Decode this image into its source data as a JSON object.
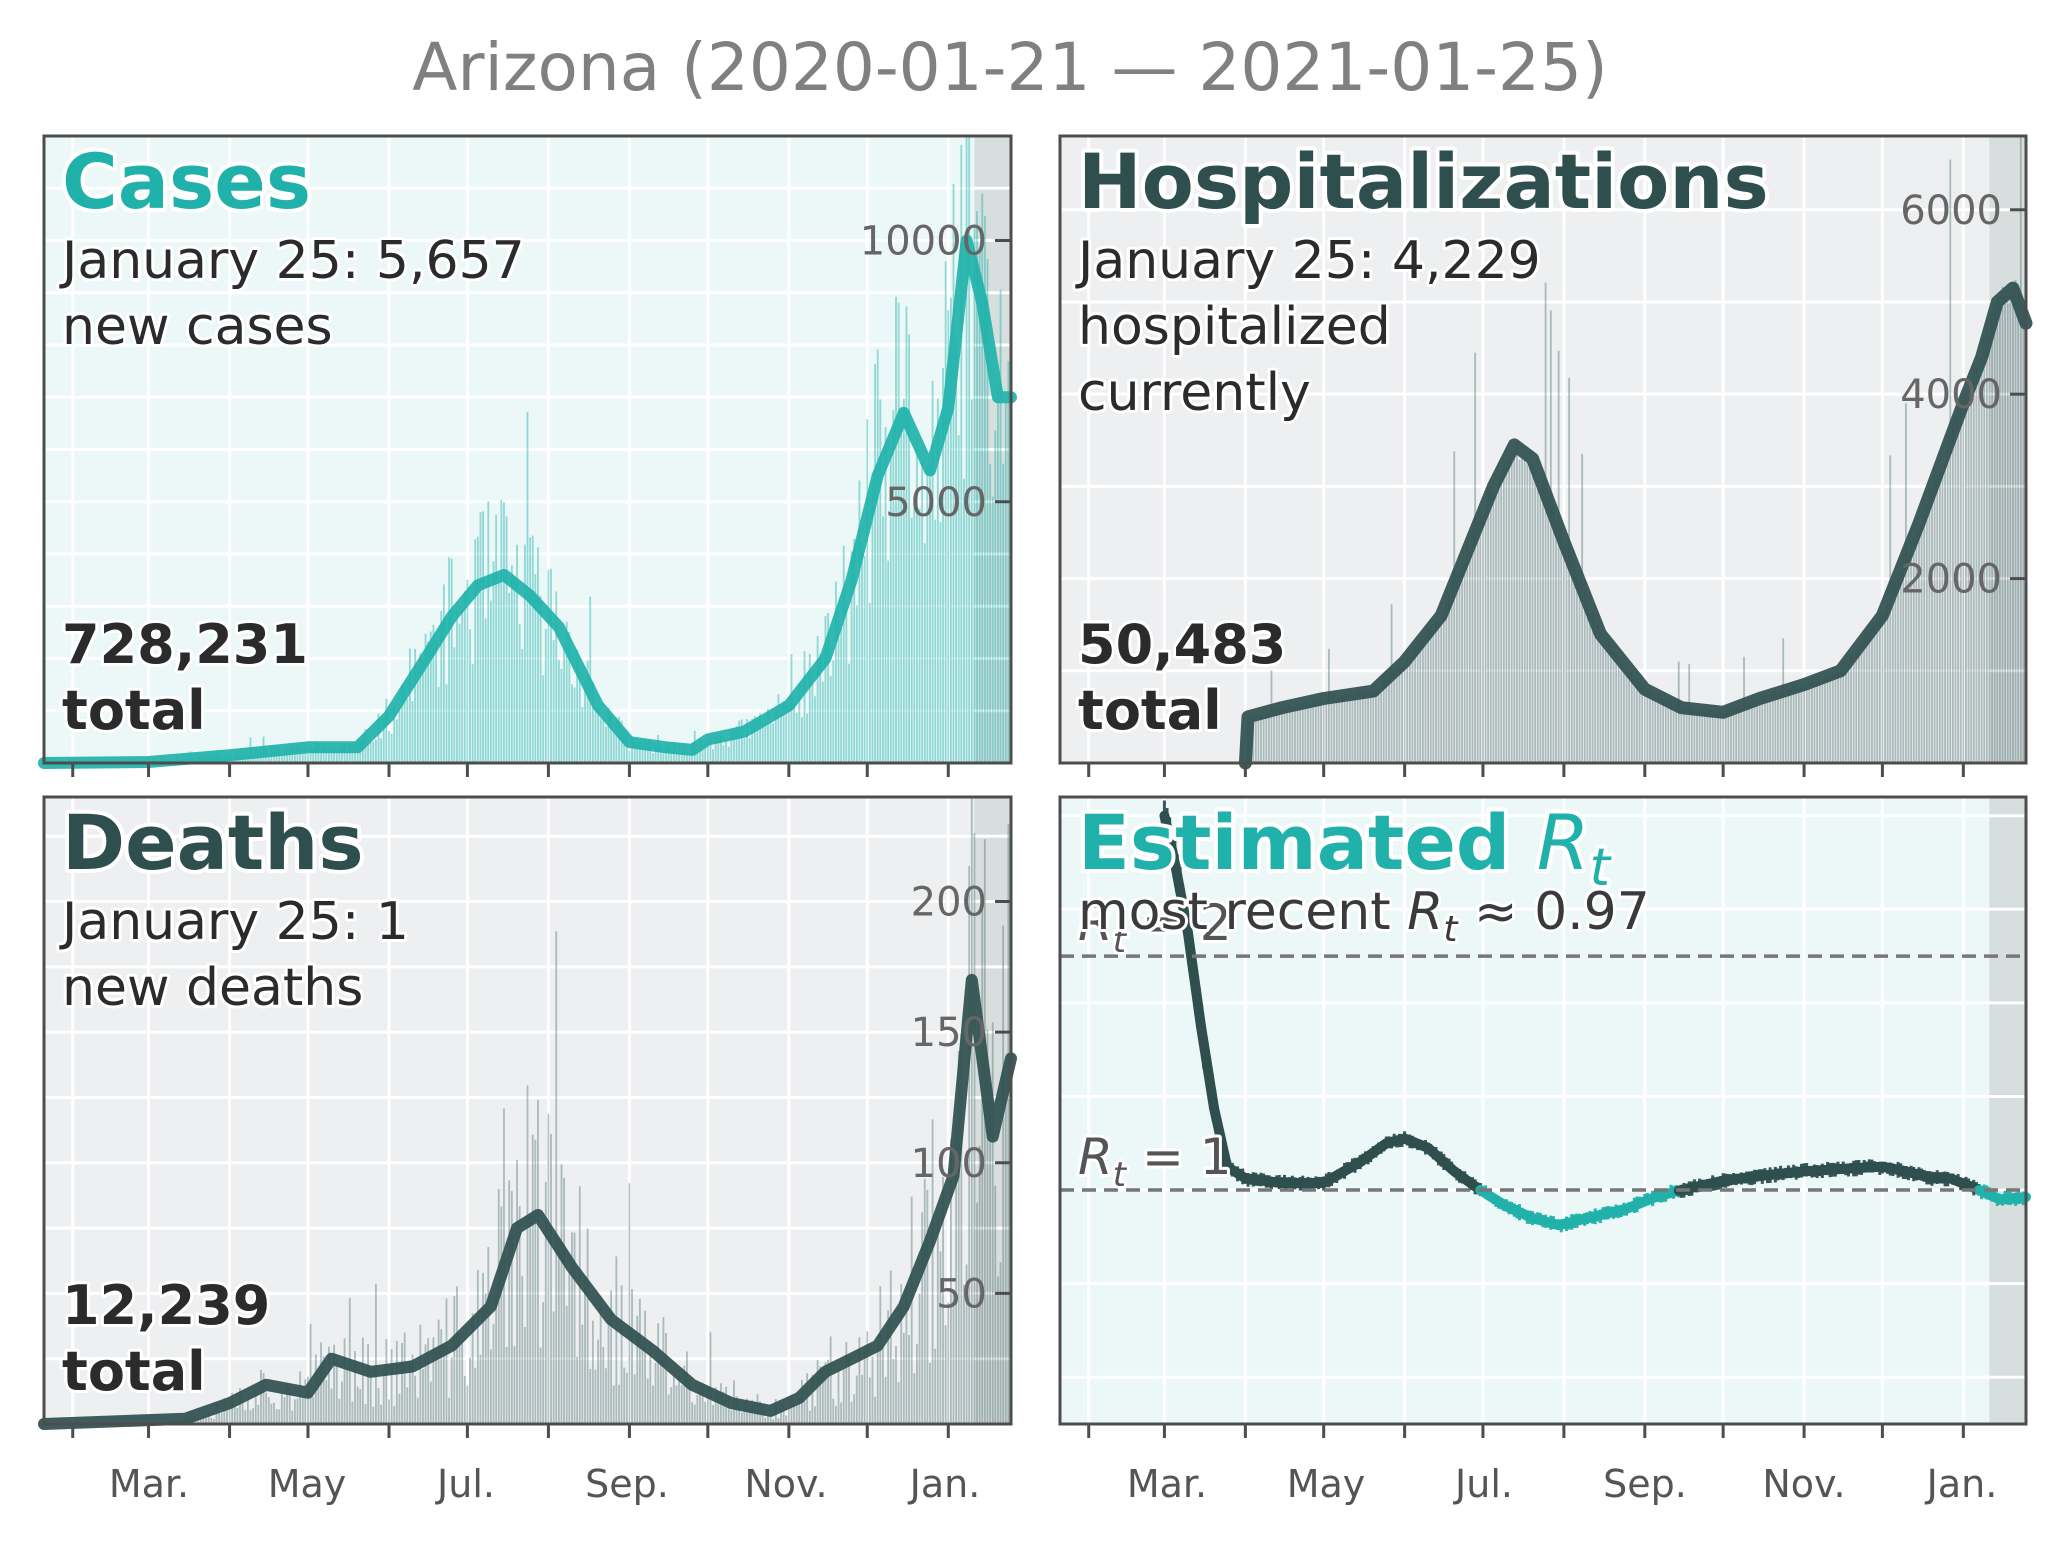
{
  "figure": {
    "title": "Arizona (2020-01-21 — 2021-01-25)",
    "month_labels": [
      "Mar.",
      "May",
      "Jul.",
      "Sep.",
      "Nov.",
      "Jan."
    ]
  },
  "colors": {
    "teal": "#20b2aa",
    "dark": "#2f4f4f",
    "panel_bg_light": "#ecf7f7",
    "panel_bg_gray": "#edeff0",
    "shade": "#d3d9d9",
    "spine": "#4d4d4d",
    "tick_text": "#666666"
  },
  "chart_data": [
    {
      "type": "bar",
      "panel": "cases",
      "title": "Cases",
      "subtitle_line1": "January 25: 5,657",
      "subtitle_line2": "new cases",
      "total_line1": "728,231",
      "total_line2": "total",
      "x_range": [
        "2020-01-21",
        "2021-01-25"
      ],
      "ylim": [
        0,
        12000
      ],
      "yticks": [
        5000,
        10000
      ],
      "ytick_labels": [
        "5000",
        "10000"
      ],
      "series": [
        {
          "kind": "smoothed",
          "x": [
            "2020-01-21",
            "2020-03-01",
            "2020-04-01",
            "2020-05-01",
            "2020-05-20",
            "2020-06-01",
            "2020-06-15",
            "2020-06-25",
            "2020-07-05",
            "2020-07-15",
            "2020-07-25",
            "2020-08-05",
            "2020-08-20",
            "2020-09-01",
            "2020-09-15",
            "2020-09-25",
            "2020-10-01",
            "2020-10-15",
            "2020-11-01",
            "2020-11-15",
            "2020-11-25",
            "2020-12-05",
            "2020-12-15",
            "2020-12-25",
            "2021-01-01",
            "2021-01-08",
            "2021-01-14",
            "2021-01-20",
            "2021-01-25"
          ],
          "y": [
            0,
            20,
            150,
            300,
            300,
            900,
            2000,
            2800,
            3400,
            3600,
            3200,
            2600,
            1100,
            400,
            300,
            250,
            450,
            600,
            1100,
            2000,
            3500,
            5500,
            6700,
            5600,
            6800,
            10000,
            8800,
            7000,
            7000
          ]
        }
      ]
    },
    {
      "type": "area",
      "panel": "hospitalizations",
      "title": "Hospitalizations",
      "subtitle_line1": "January 25: 4,229",
      "subtitle_line2": "hospitalized",
      "subtitle_line3": "currently",
      "total_line1": "50,483",
      "total_line2": "total",
      "x_range": [
        "2020-01-21",
        "2021-01-25"
      ],
      "ylim": [
        0,
        6800
      ],
      "yticks": [
        2000,
        4000,
        6000
      ],
      "ytick_labels": [
        "2000",
        "4000",
        "6000"
      ],
      "series": [
        {
          "kind": "smoothed",
          "x": [
            "2020-04-01",
            "2020-04-02",
            "2020-04-15",
            "2020-05-01",
            "2020-05-20",
            "2020-06-01",
            "2020-06-15",
            "2020-06-25",
            "2020-07-05",
            "2020-07-13",
            "2020-07-20",
            "2020-08-01",
            "2020-08-15",
            "2020-09-01",
            "2020-09-15",
            "2020-10-01",
            "2020-10-15",
            "2020-11-01",
            "2020-11-15",
            "2020-12-01",
            "2020-12-15",
            "2021-01-01",
            "2021-01-08",
            "2021-01-14",
            "2021-01-20",
            "2021-01-25"
          ],
          "y": [
            0,
            500,
            600,
            700,
            780,
            1100,
            1600,
            2300,
            3000,
            3450,
            3300,
            2400,
            1400,
            800,
            600,
            550,
            700,
            850,
            1000,
            1600,
            2600,
            3900,
            4400,
            5000,
            5150,
            4770
          ]
        }
      ]
    },
    {
      "type": "bar",
      "panel": "deaths",
      "title": "Deaths",
      "subtitle_line1": "January 25: 1",
      "subtitle_line2": "new deaths",
      "total_line1": "12,239",
      "total_line2": "total",
      "x_range": [
        "2020-01-21",
        "2021-01-25"
      ],
      "ylim": [
        0,
        240
      ],
      "yticks": [
        50,
        100,
        150,
        200
      ],
      "ytick_labels": [
        "50",
        "100",
        "150",
        "200"
      ],
      "series": [
        {
          "kind": "smoothed",
          "x": [
            "2020-01-21",
            "2020-03-15",
            "2020-04-01",
            "2020-04-15",
            "2020-05-01",
            "2020-05-10",
            "2020-05-25",
            "2020-06-10",
            "2020-06-25",
            "2020-07-10",
            "2020-07-20",
            "2020-07-28",
            "2020-08-10",
            "2020-08-25",
            "2020-09-10",
            "2020-09-25",
            "2020-10-10",
            "2020-10-25",
            "2020-11-05",
            "2020-11-15",
            "2020-11-25",
            "2020-12-05",
            "2020-12-15",
            "2020-12-25",
            "2021-01-03",
            "2021-01-10",
            "2021-01-14",
            "2021-01-18",
            "2021-01-25"
          ],
          "y": [
            0,
            2,
            8,
            15,
            12,
            25,
            20,
            22,
            30,
            45,
            75,
            80,
            60,
            40,
            28,
            15,
            8,
            5,
            10,
            20,
            25,
            30,
            45,
            70,
            95,
            170,
            140,
            110,
            140
          ]
        }
      ]
    },
    {
      "type": "line",
      "panel": "rt",
      "title_main": "Estimated ",
      "title_symbol": "R",
      "title_sub": "t",
      "subtitle_prefix": "most recent ",
      "subtitle_symbol": "R",
      "subtitle_sub": "t",
      "subtitle_suffix": " ≈ 0.97",
      "ref_line_2_symbol": "R",
      "ref_line_2_sub": "t",
      "ref_line_2_text": " = 2",
      "ref_line_1_symbol": "R",
      "ref_line_1_sub": "t",
      "ref_line_1_text": " = 1",
      "x_range": [
        "2020-01-21",
        "2021-01-25"
      ],
      "ylim": [
        0.0,
        2.68
      ],
      "reference_lines": [
        1,
        2
      ],
      "series": [
        {
          "kind": "estimate",
          "x": [
            "2020-03-01",
            "2020-03-05",
            "2020-03-10",
            "2020-03-15",
            "2020-03-20",
            "2020-03-25",
            "2020-04-01",
            "2020-04-15",
            "2020-05-01",
            "2020-05-15",
            "2020-05-25",
            "2020-06-01",
            "2020-06-10",
            "2020-06-20",
            "2020-06-30",
            "2020-07-10",
            "2020-07-20",
            "2020-07-30",
            "2020-08-10",
            "2020-08-25",
            "2020-09-05",
            "2020-09-15",
            "2020-10-01",
            "2020-10-15",
            "2020-11-01",
            "2020-11-15",
            "2020-12-01",
            "2020-12-10",
            "2020-12-20",
            "2020-12-27",
            "2021-01-05",
            "2021-01-15",
            "2021-01-25"
          ],
          "y": [
            2.6,
            2.4,
            2.1,
            1.7,
            1.35,
            1.1,
            1.05,
            1.03,
            1.03,
            1.12,
            1.2,
            1.22,
            1.18,
            1.08,
            1.0,
            0.93,
            0.88,
            0.85,
            0.88,
            0.92,
            0.97,
            1.0,
            1.04,
            1.06,
            1.08,
            1.09,
            1.1,
            1.08,
            1.05,
            1.05,
            1.01,
            0.96,
            0.97
          ]
        }
      ]
    }
  ]
}
